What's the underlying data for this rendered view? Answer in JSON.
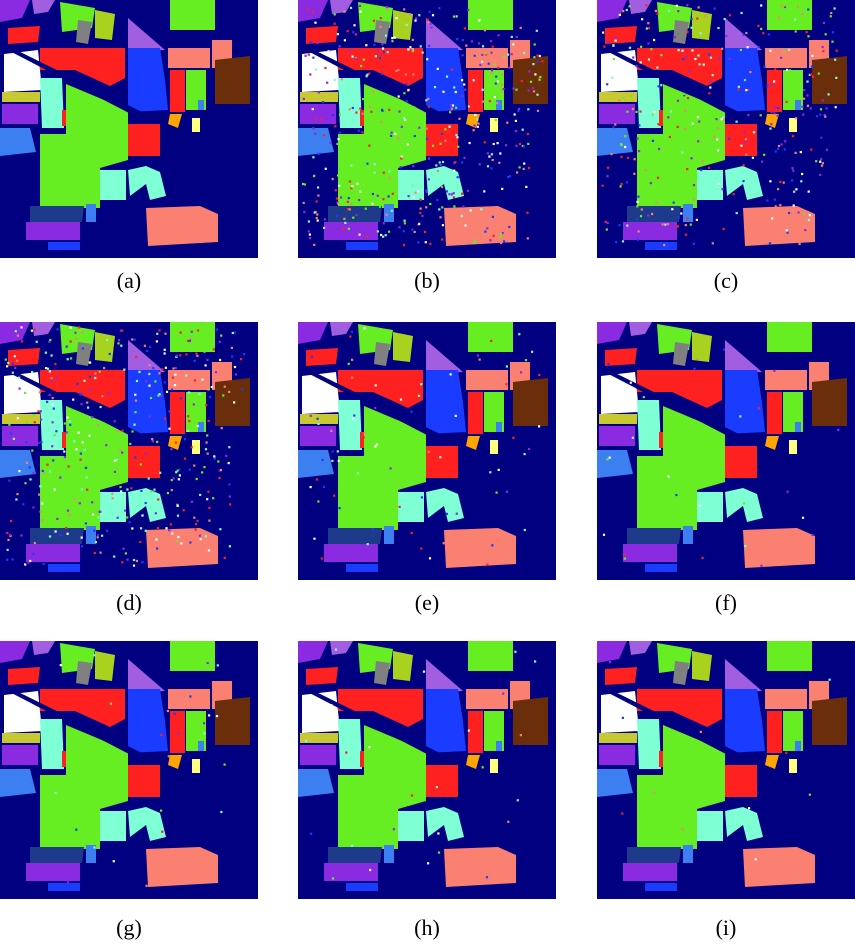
{
  "colors": {
    "background": "#000080",
    "alfalfa_purple": "#8a2be2",
    "corn_notill_red": "#ff2020",
    "corn_mintill_olive": "#a9d21f",
    "corn_yellow": "#c8c830",
    "grass_pasture_magenta": "#a25ee0",
    "grass_trees_lightgreen": "#b4e630",
    "hay_white": "#ffffff",
    "oats_gray": "#808080",
    "soybean_notill_blue": "#1a3cff",
    "soybean_mintill_green": "#66ee22",
    "soybean_clean_cyan": "#7fffd4",
    "wheat_skyblue": "#3c7ff0",
    "woods_salmon": "#fa8072",
    "buildings_brown": "#6b2e0a",
    "stone_orange": "#ffa500",
    "extra_yellow": "#ffff80",
    "extra_darkblue": "#1e3a8a"
  },
  "panels": [
    {
      "caption": "(a)",
      "noise": 0
    },
    {
      "caption": "(b)",
      "noise": 0.35
    },
    {
      "caption": "(c)",
      "noise": 0.25
    },
    {
      "caption": "(d)",
      "noise": 0.3
    },
    {
      "caption": "(e)",
      "noise": 0.06
    },
    {
      "caption": "(f)",
      "noise": 0.02
    },
    {
      "caption": "(g)",
      "noise": 0.02
    },
    {
      "caption": "(h)",
      "noise": 0.02
    },
    {
      "caption": "(i)",
      "noise": 0.01
    }
  ]
}
